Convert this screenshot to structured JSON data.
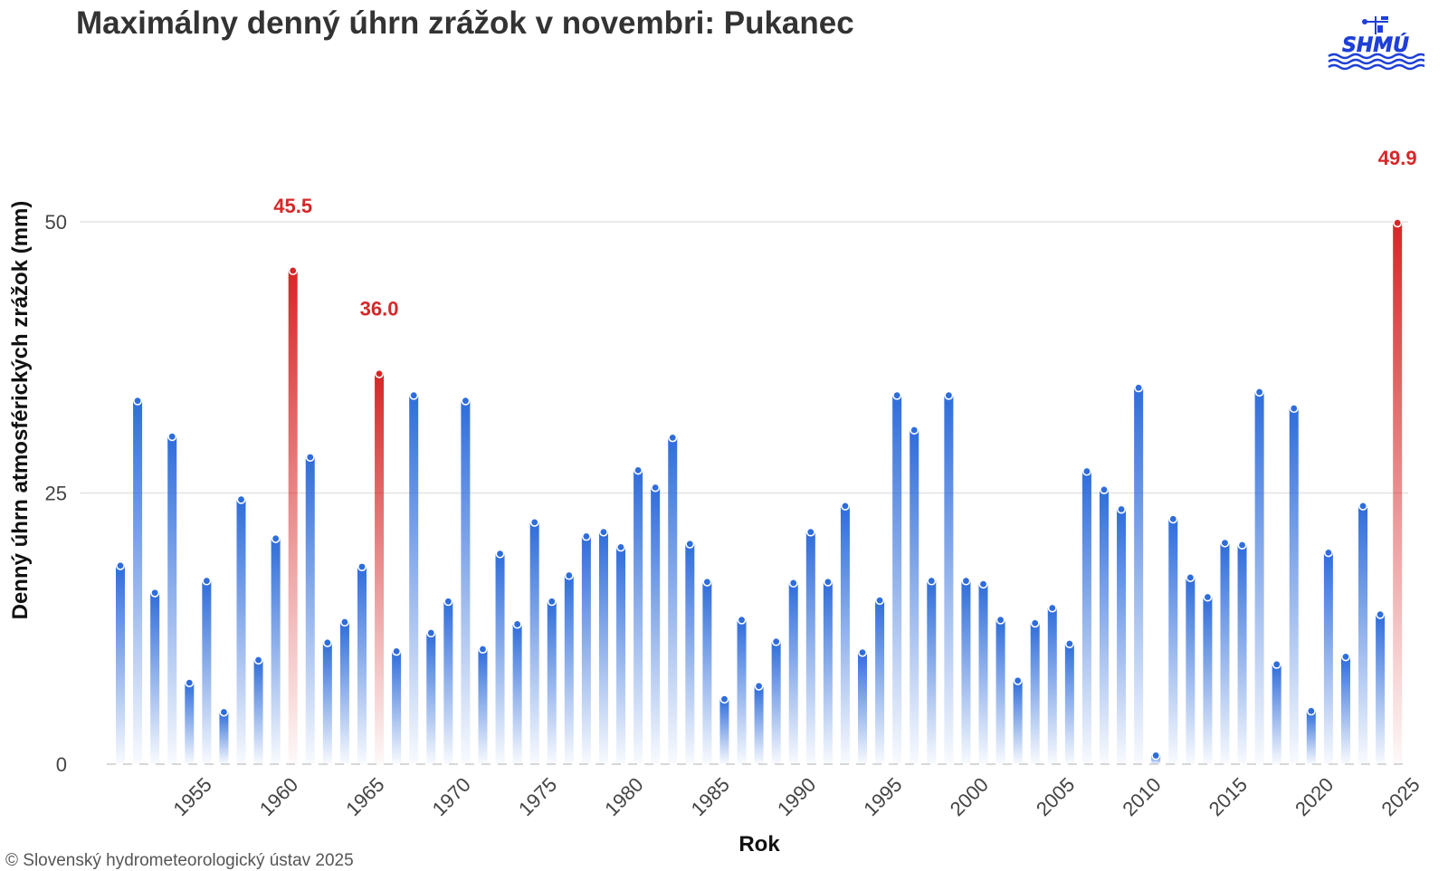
{
  "title": "Maximálny denný úhrn zrážok v novembri: Pukanec",
  "logo_text": "SHMÚ",
  "copyright": "© Slovenský hydrometeorologický ústav 2025",
  "colors": {
    "normal": "#2f6ddb",
    "highlight": "#d62728"
  },
  "chart_data": {
    "type": "bar",
    "xlabel": "Rok",
    "ylabel": "Denný úhrn atmosférických zrážok (mm)",
    "ylim": [
      0,
      50
    ],
    "y_ticks": [
      0,
      25,
      50
    ],
    "x_ticks": [
      1955,
      1960,
      1965,
      1970,
      1975,
      1980,
      1985,
      1990,
      1995,
      2000,
      2005,
      2010,
      2015,
      2020,
      2025
    ],
    "grid": true,
    "categories": [
      1951,
      1952,
      1953,
      1954,
      1955,
      1956,
      1957,
      1958,
      1959,
      1960,
      1961,
      1962,
      1963,
      1964,
      1965,
      1966,
      1967,
      1968,
      1969,
      1970,
      1971,
      1972,
      1973,
      1974,
      1975,
      1976,
      1977,
      1978,
      1979,
      1980,
      1981,
      1982,
      1983,
      1984,
      1985,
      1986,
      1987,
      1988,
      1989,
      1990,
      1991,
      1992,
      1993,
      1994,
      1995,
      1996,
      1997,
      1998,
      1999,
      2000,
      2001,
      2002,
      2003,
      2004,
      2005,
      2006,
      2007,
      2008,
      2009,
      2010,
      2011,
      2012,
      2013,
      2014,
      2015,
      2016,
      2017,
      2018,
      2019,
      2020,
      2021,
      2022,
      2023,
      2024,
      2025
    ],
    "values": [
      18.3,
      33.5,
      15.8,
      30.2,
      7.5,
      16.9,
      4.8,
      24.4,
      9.6,
      20.8,
      45.5,
      28.3,
      11.2,
      13.1,
      18.2,
      36.0,
      10.4,
      34.0,
      12.1,
      15.0,
      33.5,
      10.6,
      19.4,
      12.9,
      22.3,
      15.0,
      17.4,
      21.0,
      21.4,
      20.0,
      27.1,
      25.5,
      30.1,
      20.3,
      16.8,
      6.0,
      13.3,
      7.2,
      11.3,
      16.7,
      21.4,
      16.8,
      23.8,
      10.3,
      15.1,
      34.0,
      30.8,
      16.9,
      34.0,
      16.9,
      16.6,
      13.3,
      7.7,
      13.0,
      14.4,
      11.1,
      27.0,
      25.3,
      23.5,
      34.7,
      0.8,
      22.6,
      17.2,
      15.4,
      20.4,
      20.2,
      34.3,
      9.2,
      32.8,
      4.9,
      19.5,
      9.9,
      23.8,
      13.8,
      49.9
    ],
    "highlighted": [
      {
        "year": 1961,
        "value": 45.5,
        "label": "45.5"
      },
      {
        "year": 1966,
        "value": 36.0,
        "label": "36.0"
      },
      {
        "year": 2025,
        "value": 49.9,
        "label": "49.9"
      }
    ]
  }
}
